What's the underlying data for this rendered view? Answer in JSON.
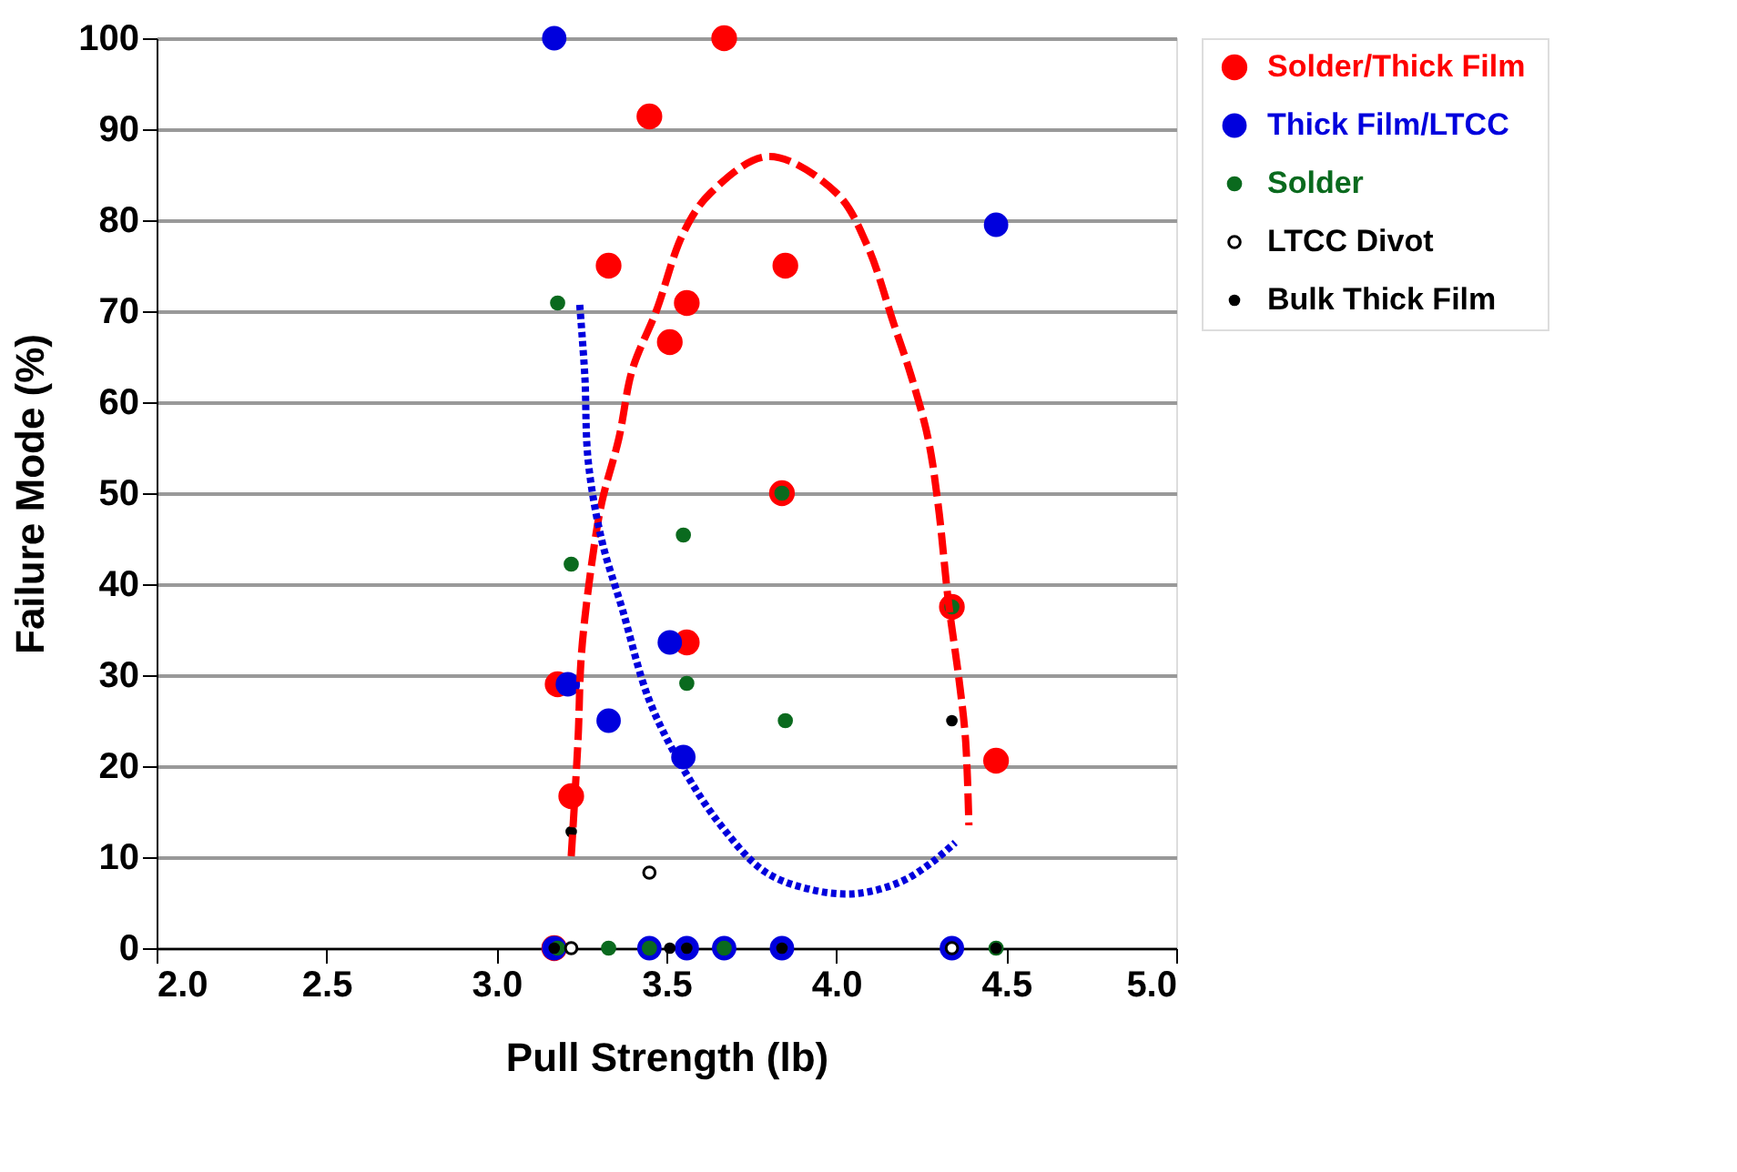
{
  "chart_data": {
    "type": "scatter",
    "xlabel": "Pull Strength  (lb)",
    "ylabel": "Failure Mode  (%)",
    "xlim": [
      2.0,
      5.0
    ],
    "xticks": [
      {
        "value": 2,
        "label": "2.0"
      },
      {
        "value": 2.5,
        "label": "2.5"
      },
      {
        "value": 3,
        "label": "3.0"
      },
      {
        "value": 3.5,
        "label": "3.5"
      },
      {
        "value": 4,
        "label": "4.0"
      },
      {
        "value": 4.5,
        "label": "4.5"
      },
      {
        "value": 5,
        "label": "5.0"
      }
    ],
    "ylim": [
      0,
      100
    ],
    "yticks": [
      0,
      10,
      20,
      30,
      40,
      50,
      60,
      70,
      80,
      90,
      100
    ],
    "grid": "y",
    "legend": "right",
    "marker": "circle",
    "series": [
      {
        "name": "Solder/Thick Film",
        "color": "#ff0000",
        "x": [
          3.17,
          3.18,
          3.22,
          3.56,
          3.84,
          4.34,
          4.47,
          3.67,
          3.45,
          3.33,
          3.85,
          3.56,
          3.51
        ],
        "values": [
          0,
          29,
          16.7,
          33.6,
          50,
          37.5,
          20.6,
          100,
          91.4,
          75,
          75,
          70.9,
          66.6
        ]
      },
      {
        "name": "Thick Film/LTCC",
        "color": "#0000dd",
        "x": [
          3.17,
          4.47,
          3.51,
          3.21,
          3.33,
          3.55,
          3.17,
          3.45,
          3.56,
          3.67,
          3.84,
          4.34
        ],
        "values": [
          100,
          79.5,
          33.6,
          29,
          25,
          21,
          0,
          0,
          0,
          0,
          0,
          0
        ]
      },
      {
        "name": "Solder",
        "color": "#0a6a1e",
        "x": [
          3.18,
          3.84,
          3.22,
          3.55,
          3.56,
          3.85,
          4.34,
          3.18,
          3.33,
          3.45,
          3.67,
          4.47
        ],
        "values": [
          70.9,
          50,
          42.2,
          45.4,
          29.1,
          25,
          37.5,
          0,
          0,
          0,
          0,
          0
        ]
      },
      {
        "name": "LTCC Divot",
        "color": "#000000",
        "marker": "circle",
        "x": [
          3.45,
          3.22,
          4.34
        ],
        "values": [
          8.3,
          0,
          0
        ]
      },
      {
        "name": "Bulk Thick Film",
        "color": "#000000",
        "x": [
          3.22,
          4.34,
          3.17,
          3.51,
          3.56,
          3.84,
          4.47
        ],
        "values": [
          12.8,
          25,
          0,
          0,
          0,
          0,
          0
        ]
      },
      {
        "type": "line",
        "color": "#ff0000",
        "line_style": "dashed",
        "marker": "none",
        "x": [
          3.22,
          3.24,
          3.25,
          3.28,
          3.31,
          3.36,
          3.4,
          3.47,
          3.55,
          3.63,
          3.8,
          4.0,
          4.09,
          4.17,
          4.22,
          4.27,
          4.3,
          4.33,
          4.36,
          4.38,
          4.39
        ],
        "values": [
          10.1,
          22.9,
          32.3,
          42.2,
          49,
          56,
          63.6,
          70,
          78.6,
          83,
          87,
          83,
          77.3,
          68.5,
          62.9,
          56,
          48.6,
          38,
          29.8,
          23,
          13.5
        ]
      },
      {
        "type": "line",
        "color": "#0000dd",
        "line_style": "dotted",
        "marker": "none",
        "x": [
          3.245,
          3.26,
          3.27,
          3.31,
          3.37,
          3.45,
          3.55,
          3.66,
          3.79,
          3.93,
          4.06,
          4.19,
          4.28,
          4.35
        ],
        "values": [
          70.7,
          62.9,
          53.5,
          44.8,
          37.3,
          27.2,
          19.7,
          13.5,
          8.4,
          6.4,
          6.0,
          7.3,
          9.4,
          11.6
        ]
      }
    ]
  }
}
